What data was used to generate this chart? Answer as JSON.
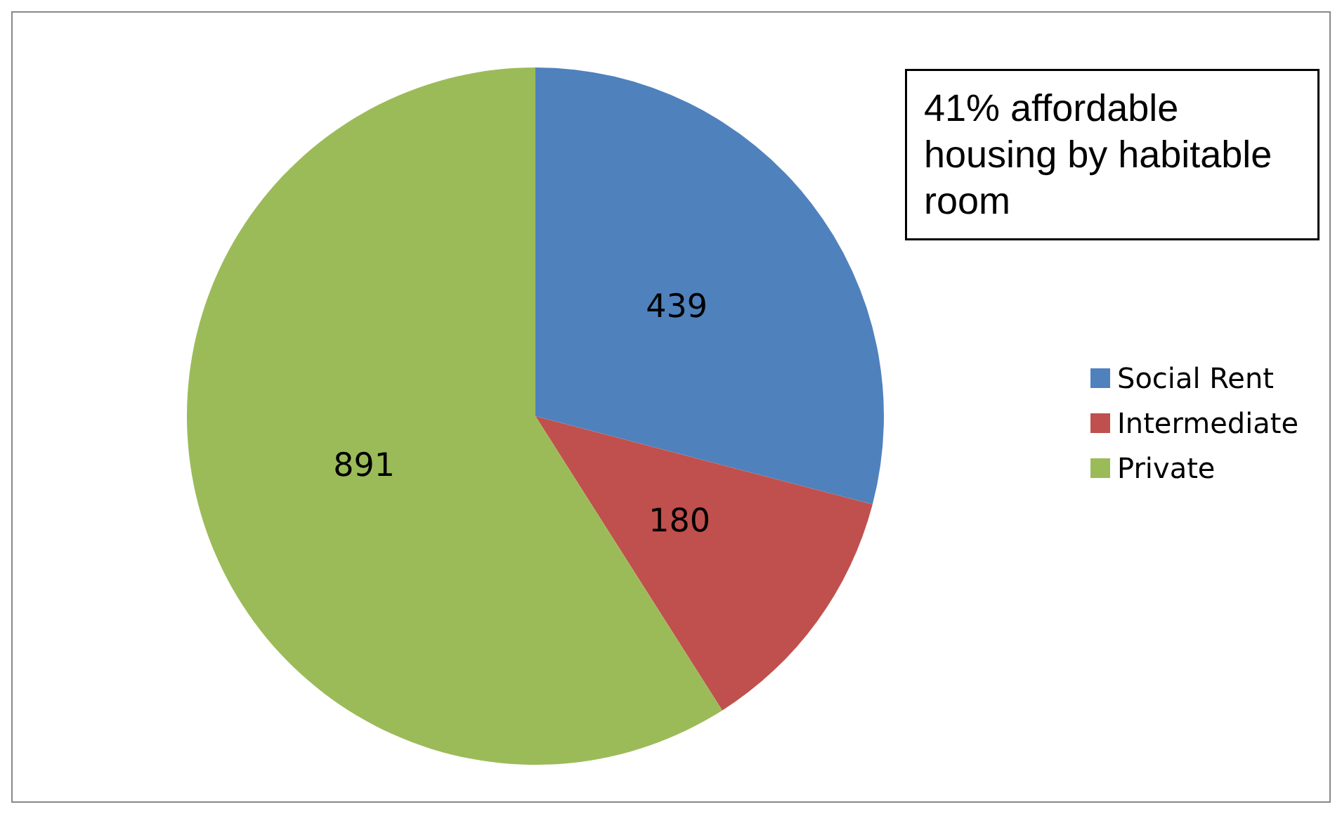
{
  "chart_data": {
    "type": "pie",
    "categories": [
      "Social Rent",
      "Intermediate",
      "Private"
    ],
    "values": [
      439,
      180,
      891
    ],
    "colors": [
      "#4f81bd",
      "#c0504d",
      "#9bbb59"
    ],
    "data_labels": true,
    "legend": "right",
    "annotations": [
      "41% affordable housing by habitable room"
    ]
  }
}
